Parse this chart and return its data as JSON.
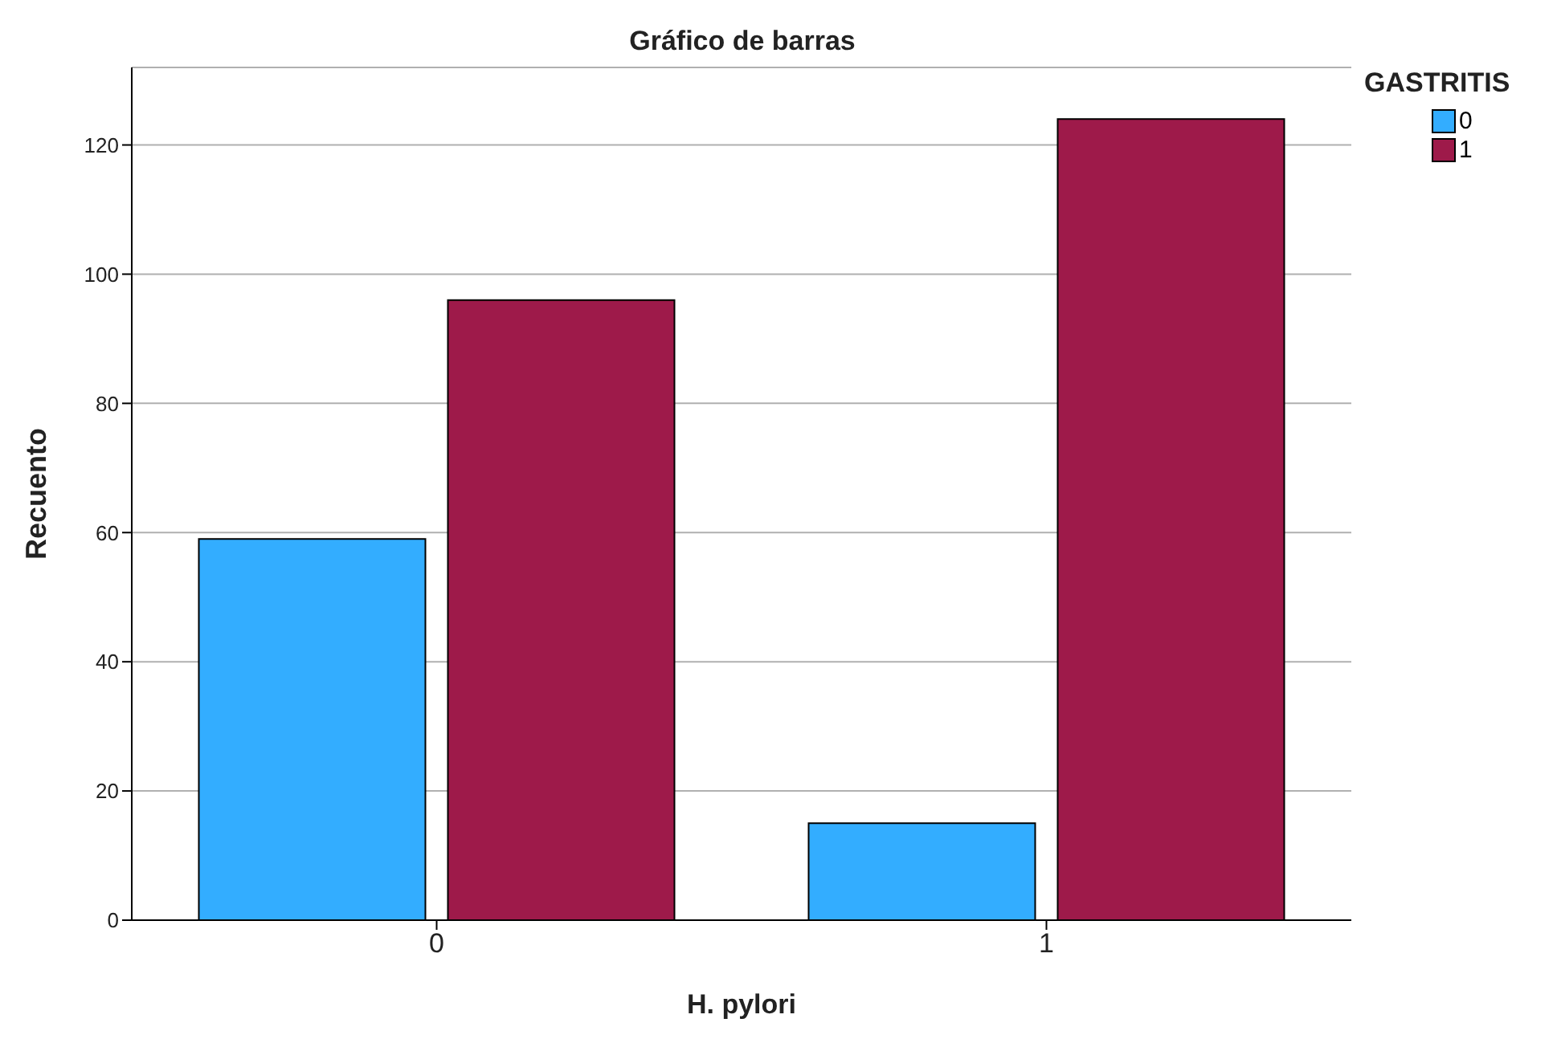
{
  "chart_data": {
    "type": "bar",
    "title": "Gráfico de barras",
    "xlabel": "H. pylori",
    "ylabel": "Recuento",
    "legend_title": "GASTRITIS",
    "categories": [
      "0",
      "1"
    ],
    "series": [
      {
        "name": "0",
        "color": "#33adff",
        "values": [
          59,
          15
        ]
      },
      {
        "name": "1",
        "color": "#9e1a4a",
        "values": [
          96,
          124
        ]
      }
    ],
    "ylim": [
      0,
      132
    ],
    "yticks": [
      0,
      20,
      40,
      60,
      80,
      100,
      120
    ],
    "grid": "y",
    "legend": "top right"
  }
}
